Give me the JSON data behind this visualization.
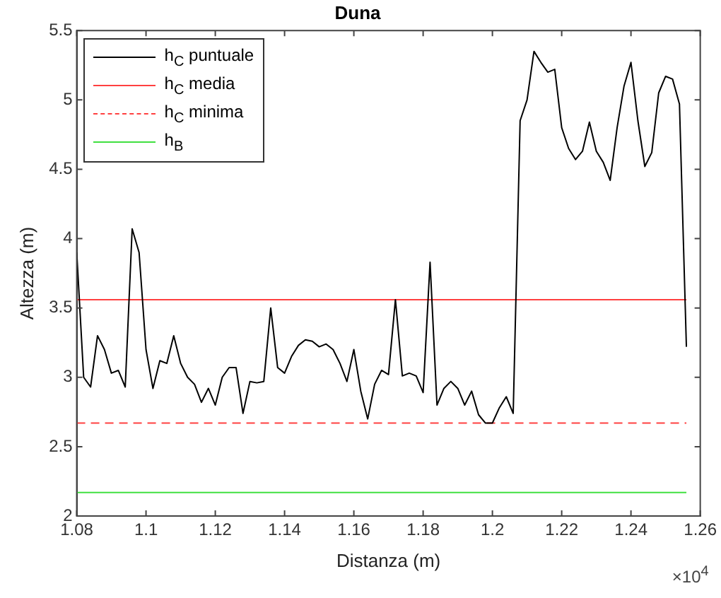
{
  "chart_data": {
    "type": "line",
    "title": "Duna",
    "xlabel": "Distanza (m)",
    "ylabel": "Altezza (m)",
    "xlim": [
      1.08,
      1.26
    ],
    "xticks": [
      1.08,
      1.1,
      1.12,
      1.14,
      1.16,
      1.18,
      1.2,
      1.22,
      1.24,
      1.26
    ],
    "ylim": [
      2,
      5.5
    ],
    "yticks": [
      2,
      2.5,
      3,
      3.5,
      4,
      4.5,
      5,
      5.5
    ],
    "grid": false,
    "legend": "top left",
    "marker": "none",
    "annotations": [
      "×10$^{4}$"
    ],
    "series": [
      {
        "name": "h$_{C}$ puntuale",
        "color": "#000000",
        "line_style": "solid",
        "x": [
          1.08,
          1.082,
          1.084,
          1.086,
          1.088,
          1.09,
          1.092,
          1.094,
          1.096,
          1.098,
          1.1,
          1.102,
          1.104,
          1.106,
          1.108,
          1.11,
          1.112,
          1.114,
          1.116,
          1.118,
          1.12,
          1.122,
          1.124,
          1.126,
          1.128,
          1.13,
          1.132,
          1.134,
          1.136,
          1.138,
          1.14,
          1.142,
          1.144,
          1.146,
          1.148,
          1.15,
          1.152,
          1.154,
          1.156,
          1.158,
          1.16,
          1.162,
          1.164,
          1.166,
          1.168,
          1.17,
          1.172,
          1.174,
          1.176,
          1.178,
          1.18,
          1.182,
          1.184,
          1.186,
          1.188,
          1.19,
          1.192,
          1.194,
          1.196,
          1.198,
          1.2,
          1.202,
          1.204,
          1.206,
          1.208,
          1.21,
          1.212,
          1.214,
          1.216,
          1.218,
          1.22,
          1.222,
          1.224,
          1.226,
          1.228,
          1.23,
          1.232,
          1.234,
          1.236,
          1.238,
          1.24,
          1.242,
          1.244,
          1.246,
          1.248,
          1.25,
          1.252,
          1.254,
          1.256
        ],
        "values": [
          3.9,
          3.0,
          2.93,
          3.3,
          3.2,
          3.03,
          3.05,
          2.93,
          4.07,
          3.9,
          3.2,
          2.92,
          3.12,
          3.1,
          3.3,
          3.1,
          3.0,
          2.95,
          2.82,
          2.92,
          2.8,
          3.0,
          3.07,
          3.07,
          2.74,
          2.97,
          2.96,
          2.97,
          3.5,
          3.07,
          3.03,
          3.15,
          3.23,
          3.27,
          3.26,
          3.22,
          3.24,
          3.2,
          3.1,
          2.97,
          3.2,
          2.9,
          2.7,
          2.95,
          3.05,
          3.02,
          3.56,
          3.01,
          3.03,
          3.01,
          2.89,
          3.83,
          2.8,
          2.92,
          2.97,
          2.92,
          2.8,
          2.9,
          2.73,
          2.67,
          2.67,
          2.78,
          2.86,
          2.74,
          4.85,
          5.0,
          5.35,
          5.27,
          5.2,
          5.22,
          4.8,
          4.65,
          4.57,
          4.63,
          4.84,
          4.63,
          4.55,
          4.42,
          4.8,
          5.1,
          5.27,
          4.85,
          4.52,
          4.62,
          5.05,
          5.17,
          5.15,
          4.97,
          3.22
        ]
      },
      {
        "name": "h$_{C}$ media",
        "color": "#ff4040",
        "line_style": "solid",
        "x": [
          1.08,
          1.256
        ],
        "values": [
          3.56,
          3.56
        ]
      },
      {
        "name": "h$_{C}$ minima",
        "color": "#ff4040",
        "line_style": "dashed",
        "x": [
          1.08,
          1.256
        ],
        "values": [
          2.67,
          2.67
        ]
      },
      {
        "name": "h$_{B}$",
        "color": "#40e040",
        "line_style": "solid",
        "x": [
          1.08,
          1.256
        ],
        "values": [
          2.17,
          2.17
        ]
      }
    ]
  }
}
